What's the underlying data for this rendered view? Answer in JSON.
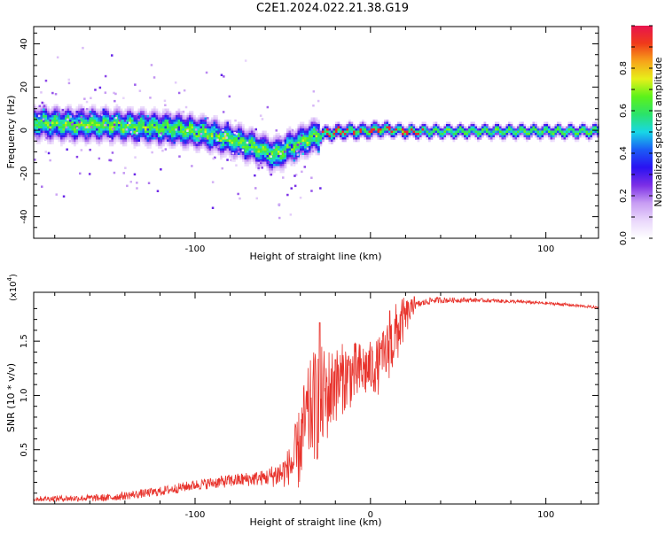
{
  "figure_title": "C2E1.2024.022.21.38.G19",
  "colors": {
    "snr_line": "#e8332c",
    "colormap": [
      "#ffffff",
      "#e9d7fb",
      "#c79cf3",
      "#7b2ee6",
      "#2a12f2",
      "#1b5cf5",
      "#18d7e6",
      "#2be36a",
      "#5cf21a",
      "#e7f01a",
      "#f7a21a",
      "#ef3a1a",
      "#e8144e"
    ]
  },
  "chart_data": [
    {
      "type": "heatmap",
      "xlabel": "Height of straight line (km)",
      "ylabel": "Frequency (Hz)",
      "xlim": [
        -192,
        130
      ],
      "ylim": [
        -50,
        48
      ],
      "x_ticks": [
        -100,
        0,
        100
      ],
      "x_tick_labels": [
        "-100",
        "",
        "100"
      ],
      "y_ticks": [
        -40,
        -20,
        0,
        20,
        40
      ],
      "y_tick_labels": [
        "-40",
        "-20",
        "0",
        "20",
        "40"
      ],
      "colorbar": {
        "label": "Normalized spectral amplitude",
        "range": [
          0,
          1
        ],
        "ticks": [
          0.0,
          0.2,
          0.4,
          0.6,
          0.8
        ],
        "tick_labels": [
          "0.0",
          "0.2",
          "0.4",
          "0.6",
          "0.8"
        ]
      },
      "ridge": [
        {
          "x": -192,
          "f": 4
        },
        {
          "x": -170,
          "f": 3
        },
        {
          "x": -150,
          "f": 3
        },
        {
          "x": -130,
          "f": 2
        },
        {
          "x": -110,
          "f": 1
        },
        {
          "x": -95,
          "f": -1
        },
        {
          "x": -85,
          "f": -3
        },
        {
          "x": -75,
          "f": -5
        },
        {
          "x": -65,
          "f": -8
        },
        {
          "x": -55,
          "f": -11
        },
        {
          "x": -48,
          "f": -8
        },
        {
          "x": -40,
          "f": -5
        },
        {
          "x": -35,
          "f": -3
        },
        {
          "x": -25,
          "f": -1
        },
        {
          "x": -15,
          "f": 0
        },
        {
          "x": -5,
          "f": 0
        },
        {
          "x": 5,
          "f": 1
        },
        {
          "x": 20,
          "f": 0
        },
        {
          "x": 60,
          "f": 0
        },
        {
          "x": 100,
          "f": 0
        },
        {
          "x": 130,
          "f": 0
        }
      ],
      "grid": false
    },
    {
      "type": "line",
      "xlabel": "Height of straight line (km)",
      "ylabel": "SNR (10 * v/v)",
      "multiplier_label": "(x10",
      "multiplier_exponent": "4",
      "multiplier_close": ")",
      "xlim": [
        -192,
        130
      ],
      "ylim": [
        0,
        1.95
      ],
      "x_ticks": [
        -100,
        0,
        100
      ],
      "x_tick_labels": [
        "-100",
        "0",
        "100"
      ],
      "y_ticks": [
        0.5,
        1.0,
        1.5
      ],
      "y_tick_labels": [
        "0.5",
        "1.0",
        "1.5"
      ],
      "series": [
        {
          "envelope": [
            [
              -192,
              0.05
            ],
            [
              -150,
              0.06
            ],
            [
              -120,
              0.12
            ],
            [
              -100,
              0.18
            ],
            [
              -80,
              0.22
            ],
            [
              -60,
              0.25
            ],
            [
              -50,
              0.3
            ],
            [
              -42,
              0.45
            ],
            [
              -38,
              0.75
            ],
            [
              -33,
              0.95
            ],
            [
              -28,
              1.0
            ],
            [
              -22,
              1.1
            ],
            [
              -15,
              1.2
            ],
            [
              -5,
              1.25
            ],
            [
              5,
              1.3
            ],
            [
              12,
              1.5
            ],
            [
              18,
              1.7
            ],
            [
              25,
              1.83
            ],
            [
              35,
              1.88
            ],
            [
              60,
              1.88
            ],
            [
              90,
              1.86
            ],
            [
              110,
              1.84
            ],
            [
              130,
              1.81
            ]
          ],
          "noise_amplitude": [
            [
              -192,
              0.04
            ],
            [
              -100,
              0.08
            ],
            [
              -60,
              0.12
            ],
            [
              -42,
              0.35
            ],
            [
              -30,
              0.55
            ],
            [
              -20,
              0.35
            ],
            [
              0,
              0.25
            ],
            [
              15,
              0.3
            ],
            [
              25,
              0.06
            ],
            [
              60,
              0.03
            ],
            [
              130,
              0.02
            ]
          ],
          "peaks": [
            [
              -29,
              1.67
            ],
            [
              -20,
              1.33
            ],
            [
              6,
              1.43
            ],
            [
              11,
              1.78
            ],
            [
              25,
              1.91
            ]
          ]
        }
      ],
      "grid": false
    }
  ]
}
